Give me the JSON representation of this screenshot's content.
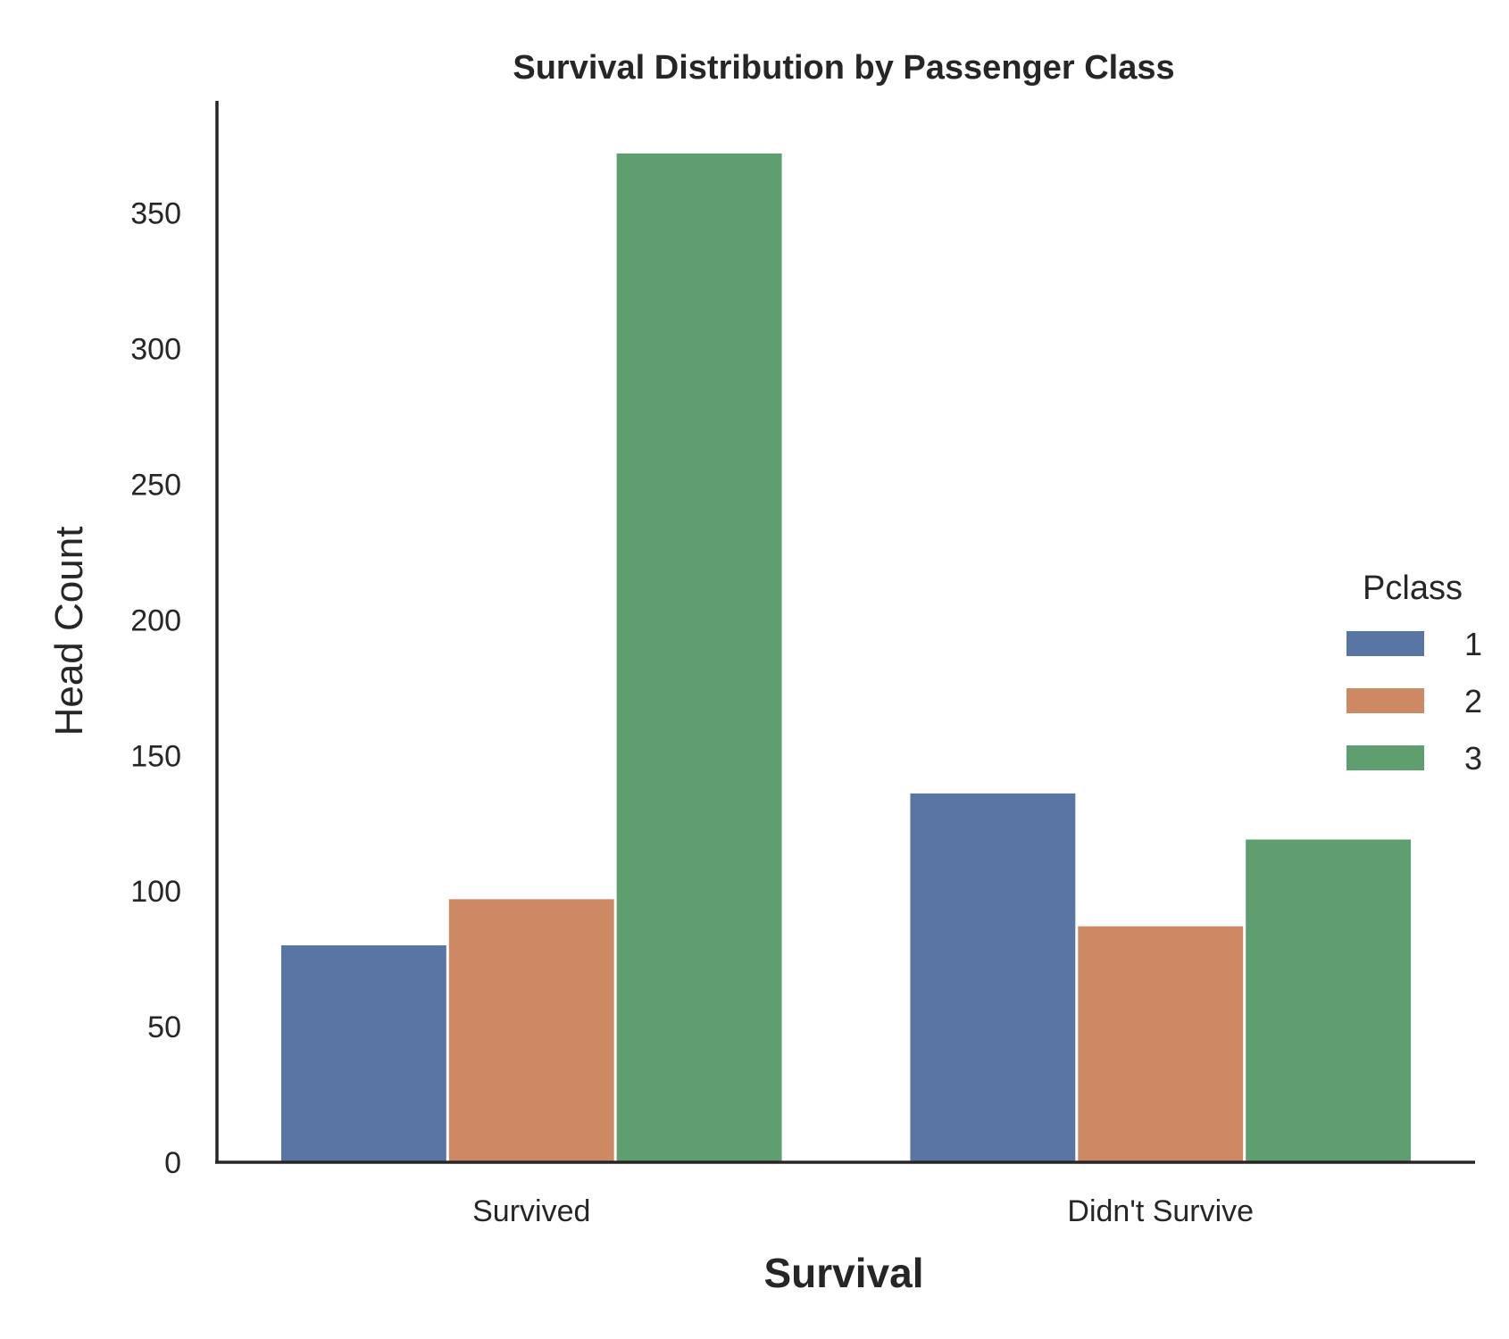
{
  "chart_data": {
    "type": "bar",
    "title": "Survival Distribution by Passenger Class",
    "xlabel": "Survival",
    "ylabel": "Head Count",
    "categories": [
      "Survived",
      "Didn't Survive"
    ],
    "series": [
      {
        "name": "1",
        "color": "#5975a4",
        "values": [
          80,
          136
        ]
      },
      {
        "name": "2",
        "color": "#cc8963",
        "values": [
          97,
          87
        ]
      },
      {
        "name": "3",
        "color": "#5f9e6e",
        "values": [
          372,
          119
        ]
      }
    ],
    "ylim": [
      0,
      390
    ],
    "yticks": [
      0,
      50,
      100,
      150,
      200,
      250,
      300,
      350
    ],
    "ytick_labels": [
      "0",
      "50",
      "100",
      "150",
      "200",
      "250",
      "300",
      "350"
    ],
    "legend": {
      "title": "Pclass",
      "placement": "center-right"
    },
    "grid": false
  }
}
